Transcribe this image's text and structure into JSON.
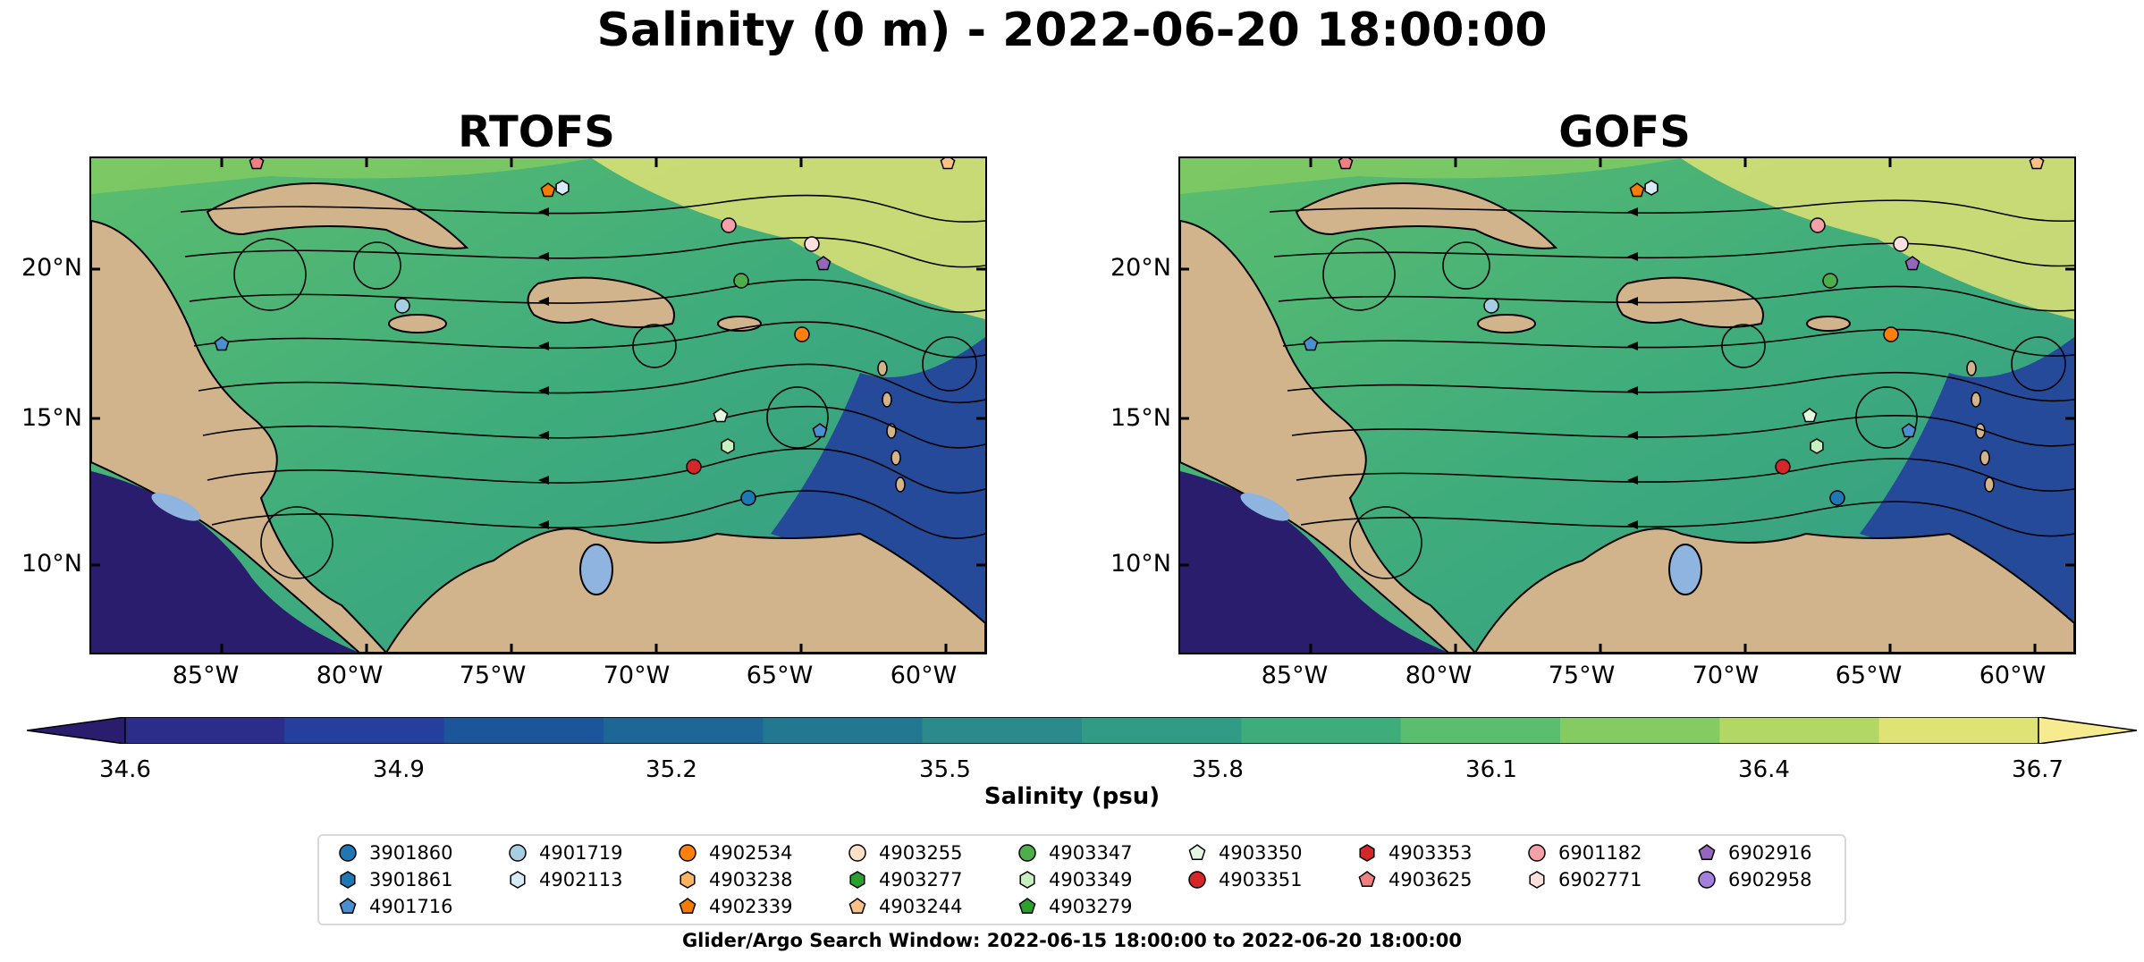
{
  "title": "Salinity (0 m) - 2022-06-20 18:00:00",
  "panels": [
    {
      "title": "RTOFS"
    },
    {
      "title": "GOFS"
    }
  ],
  "lat_ticks": [
    "20°N",
    "15°N",
    "10°N"
  ],
  "lon_ticks": [
    "85°W",
    "80°W",
    "75°W",
    "70°W",
    "65°W",
    "60°W"
  ],
  "colorbar": {
    "label": "Salinity (psu)",
    "ticks": [
      "34.6",
      "34.9",
      "35.2",
      "35.5",
      "35.8",
      "36.1",
      "36.4",
      "36.7"
    ],
    "range": [
      34.6,
      36.7
    ],
    "extend": "both",
    "colors": [
      "#2b1d6e",
      "#2c2d8a",
      "#25409c",
      "#1b559a",
      "#1c6795",
      "#227891",
      "#2a8a8c",
      "#329b86",
      "#3fac7c",
      "#5bbd6e",
      "#84cb62",
      "#b3d764",
      "#dfe274",
      "#f6eb8f"
    ]
  },
  "land_color": "#d2b48c",
  "lake_color": "#8fb4e0",
  "legend": {
    "columns": [
      [
        {
          "id": "3901860",
          "shape": "circle",
          "color": "#1f77b4"
        },
        {
          "id": "3901861",
          "shape": "hexagon",
          "color": "#1f77b4"
        },
        {
          "id": "4901716",
          "shape": "pentagon",
          "color": "#4a90d0"
        }
      ],
      [
        {
          "id": "4901719",
          "shape": "circle",
          "color": "#a6cee3"
        },
        {
          "id": "4902113",
          "shape": "hexagon",
          "color": "#d6eaf8"
        }
      ],
      [
        {
          "id": "4902534",
          "shape": "circle",
          "color": "#ff7f0e"
        },
        {
          "id": "4903238",
          "shape": "hexagon",
          "color": "#fdb462"
        },
        {
          "id": "4902339",
          "shape": "pentagon",
          "color": "#f57c00"
        }
      ],
      [
        {
          "id": "4903255",
          "shape": "circle",
          "color": "#fde0c5"
        },
        {
          "id": "4903277",
          "shape": "hexagon",
          "color": "#2ca02c"
        },
        {
          "id": "4903244",
          "shape": "pentagon",
          "color": "#fdc086"
        }
      ],
      [
        {
          "id": "4903347",
          "shape": "circle",
          "color": "#4daf4a"
        },
        {
          "id": "4903349",
          "shape": "hexagon",
          "color": "#c7f0c0"
        },
        {
          "id": "4903279",
          "shape": "pentagon",
          "color": "#2ca02c"
        }
      ],
      [
        {
          "id": "4903350",
          "shape": "pentagon",
          "color": "#e5f5e0"
        },
        {
          "id": "4903351",
          "shape": "circle",
          "color": "#d62728"
        }
      ],
      [
        {
          "id": "4903353",
          "shape": "hexagon",
          "color": "#d62728"
        },
        {
          "id": "4903625",
          "shape": "pentagon",
          "color": "#f08080"
        }
      ],
      [
        {
          "id": "6901182",
          "shape": "circle",
          "color": "#f4a0a8"
        },
        {
          "id": "6902771",
          "shape": "hexagon",
          "color": "#fde0dd"
        }
      ],
      [
        {
          "id": "6902916",
          "shape": "pentagon",
          "color": "#9467bd"
        },
        {
          "id": "6902958",
          "shape": "circle",
          "color": "#a57fdc"
        }
      ]
    ]
  },
  "footnote": "Glider/Argo Search Window: 2022-06-15 18:00:00 to 2022-06-20 18:00:00"
}
